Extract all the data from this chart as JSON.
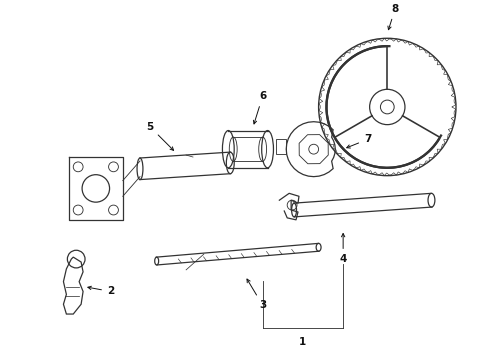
{
  "bg_color": "#ffffff",
  "line_color": "#333333",
  "text_color": "#111111",
  "fig_width": 4.9,
  "fig_height": 3.6,
  "dpi": 100
}
